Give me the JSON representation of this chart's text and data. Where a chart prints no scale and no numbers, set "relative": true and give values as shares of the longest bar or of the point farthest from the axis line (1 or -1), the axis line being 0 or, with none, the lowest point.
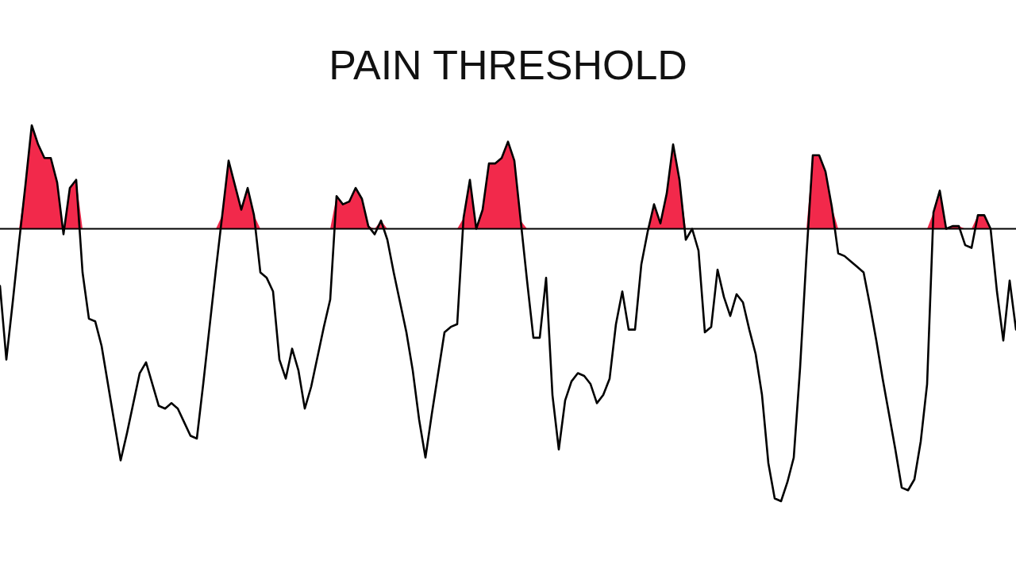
{
  "chart_data": {
    "type": "line",
    "title": "PAIN THRESHOLD",
    "relative": true,
    "categories": [
      null,
      null,
      null,
      null,
      null,
      null,
      null,
      null,
      null,
      null,
      null,
      null,
      null,
      null,
      null,
      null,
      null,
      null,
      null,
      null,
      null,
      null,
      null,
      null,
      null,
      null,
      null,
      null,
      null,
      null,
      null,
      null,
      null,
      null,
      null,
      null,
      null,
      null,
      null,
      null,
      null,
      null,
      null,
      null,
      null,
      null,
      null,
      null,
      null,
      null,
      null,
      null,
      null,
      null,
      null,
      null,
      null,
      null,
      null,
      null,
      null,
      null,
      null,
      null,
      null,
      null,
      null,
      null,
      null,
      null,
      null,
      null,
      null,
      null,
      null,
      null,
      null,
      null,
      null,
      null,
      null,
      null,
      null,
      null,
      null,
      null,
      null,
      null,
      null,
      null,
      null,
      null,
      null,
      null,
      null,
      null,
      null,
      null,
      null,
      null,
      null,
      null,
      null,
      null,
      null,
      null,
      null,
      null,
      null,
      null,
      null,
      null,
      null,
      null,
      null,
      null,
      null,
      null,
      null,
      null,
      null,
      null,
      null,
      null,
      null,
      null,
      null,
      null,
      null,
      null,
      null,
      null,
      null,
      null,
      null,
      null,
      null,
      null,
      null,
      null,
      null,
      null,
      null,
      null,
      null,
      null,
      null,
      null,
      null,
      null,
      null,
      null,
      null,
      null,
      null,
      null,
      null,
      null,
      null,
      null,
      null
    ],
    "series": [
      {
        "color": "#000000",
        "values": [
          -0.21,
          -0.48,
          -0.27,
          -0.05,
          0.16,
          0.38,
          0.31,
          0.26,
          0.26,
          0.17,
          -0.02,
          0.15,
          0.18,
          -0.16,
          -0.33,
          -0.34,
          -0.43,
          -0.57,
          -0.71,
          -0.85,
          -0.75,
          -0.64,
          -0.53,
          -0.49,
          -0.57,
          -0.65,
          -0.66,
          -0.64,
          -0.66,
          -0.71,
          -0.76,
          -0.77,
          -0.57,
          -0.36,
          -0.15,
          0.05,
          0.25,
          0.16,
          0.07,
          0.15,
          0.05,
          -0.16,
          -0.18,
          -0.23,
          -0.48,
          -0.55,
          -0.44,
          -0.52,
          -0.66,
          -0.58,
          -0.47,
          -0.36,
          -0.26,
          0.12,
          0.09,
          0.1,
          0.15,
          0.11,
          0.01,
          -0.02,
          0.03,
          -0.04,
          -0.16,
          -0.27,
          -0.38,
          -0.52,
          -0.7,
          -0.84,
          -0.68,
          -0.53,
          -0.38,
          -0.36,
          -0.35,
          0.04,
          0.18,
          0,
          0.07,
          0.24,
          0.24,
          0.26,
          0.32,
          0.25,
          0.03,
          -0.19,
          -0.4,
          -0.4,
          -0.18,
          -0.61,
          -0.81,
          -0.63,
          -0.56,
          -0.53,
          -0.54,
          -0.57,
          -0.64,
          -0.61,
          -0.55,
          -0.35,
          -0.23,
          -0.37,
          -0.37,
          -0.13,
          -0.01,
          0.09,
          0.02,
          0.13,
          0.31,
          0.18,
          -0.04,
          0,
          -0.08,
          -0.38,
          -0.36,
          -0.15,
          -0.25,
          -0.32,
          -0.24,
          -0.27,
          -0.37,
          -0.46,
          -0.61,
          -0.86,
          -0.99,
          -1,
          -0.93,
          -0.84,
          -0.51,
          -0.1,
          0.27,
          0.27,
          0.21,
          0.08,
          -0.09,
          -0.1,
          -0.12,
          -0.14,
          -0.16,
          -0.28,
          -0.41,
          -0.55,
          -0.68,
          -0.81,
          -0.95,
          -0.96,
          -0.92,
          -0.78,
          -0.57,
          0.06,
          0.14,
          0,
          0.01,
          0.01,
          -0.06,
          -0.07,
          0.05,
          0.05,
          0,
          -0.23,
          -0.41,
          -0.19,
          -0.37
        ]
      },
      {
        "type": "area",
        "color": "#f2294b",
        "values": [
          null,
          null,
          null,
          0,
          0.16,
          0.38,
          0.31,
          0.26,
          0.26,
          0.17,
          0,
          0.15,
          0.18,
          0,
          null,
          null,
          null,
          null,
          null,
          null,
          null,
          null,
          null,
          null,
          null,
          null,
          null,
          null,
          null,
          null,
          null,
          null,
          null,
          null,
          0,
          0.05,
          0.25,
          0.16,
          0.07,
          0.15,
          0.05,
          0,
          null,
          null,
          null,
          null,
          null,
          null,
          null,
          null,
          null,
          null,
          0,
          0.12,
          0.09,
          0.1,
          0.15,
          0.11,
          0.01,
          0,
          0.03,
          0,
          null,
          null,
          null,
          null,
          null,
          null,
          null,
          null,
          null,
          null,
          0,
          0.04,
          0.18,
          0,
          0.07,
          0.24,
          0.24,
          0.26,
          0.32,
          0.25,
          0.03,
          0,
          null,
          null,
          null,
          null,
          null,
          null,
          null,
          null,
          null,
          null,
          null,
          null,
          null,
          null,
          null,
          null,
          null,
          0,
          0,
          0.09,
          0.02,
          0.13,
          0.31,
          0.18,
          0,
          null,
          null,
          null,
          null,
          null,
          null,
          null,
          null,
          null,
          null,
          null,
          null,
          null,
          null,
          null,
          null,
          null,
          null,
          0,
          0.27,
          0.27,
          0.21,
          0.08,
          0,
          null,
          null,
          null,
          null,
          null,
          null,
          null,
          null,
          null,
          null,
          null,
          null,
          null,
          0,
          0.06,
          0.14,
          0,
          0.01,
          0.01,
          0,
          0,
          0.05,
          0.05,
          0,
          null,
          null,
          null,
          null
        ]
      }
    ],
    "ref_lines": [
      {
        "axis": "y",
        "value": 0,
        "color": "#000000"
      }
    ]
  }
}
